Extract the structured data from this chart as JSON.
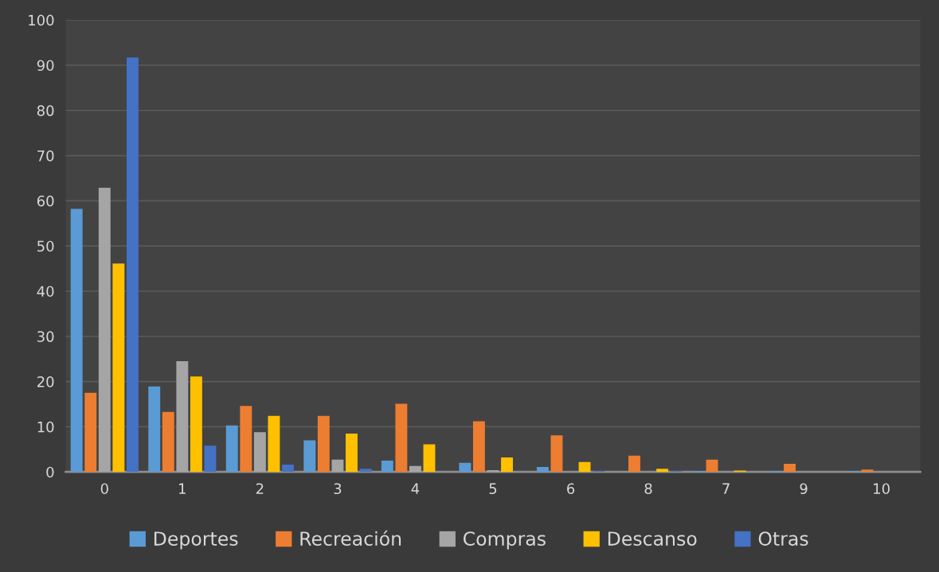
{
  "chart_data": {
    "type": "bar",
    "categories": [
      "0",
      "1",
      "2",
      "3",
      "4",
      "5",
      "6",
      "8",
      "7",
      "9",
      "10"
    ],
    "series": [
      {
        "name": "Deportes",
        "color": "#5b9bd5",
        "values": [
          58.2,
          18.9,
          10.3,
          7.0,
          2.5,
          2.0,
          1.1,
          null,
          0.2,
          0.2,
          0.2
        ]
      },
      {
        "name": "Recreación",
        "color": "#ed7d31",
        "values": [
          17.5,
          13.3,
          14.6,
          12.4,
          15.1,
          11.2,
          8.1,
          3.6,
          2.7,
          1.8,
          0.5
        ]
      },
      {
        "name": "Compras",
        "color": "#a5a5a5",
        "values": [
          62.9,
          24.5,
          8.8,
          2.7,
          1.3,
          0.4,
          null,
          0,
          0,
          0,
          0
        ]
      },
      {
        "name": "Descanso",
        "color": "#ffc000",
        "values": [
          46.1,
          21.1,
          12.4,
          8.5,
          6.1,
          3.2,
          2.2,
          0.7,
          0.3,
          0,
          0
        ]
      },
      {
        "name": "Otras",
        "color": "#4472c4",
        "values": [
          91.7,
          5.8,
          1.6,
          0.7,
          0,
          0,
          0.2,
          0.2,
          0,
          0,
          0
        ]
      }
    ],
    "ylim": [
      0,
      100
    ],
    "yticks": [
      0,
      10,
      20,
      30,
      40,
      50,
      60,
      70,
      80,
      90,
      100
    ],
    "grid": "y",
    "legend": "bottom"
  }
}
